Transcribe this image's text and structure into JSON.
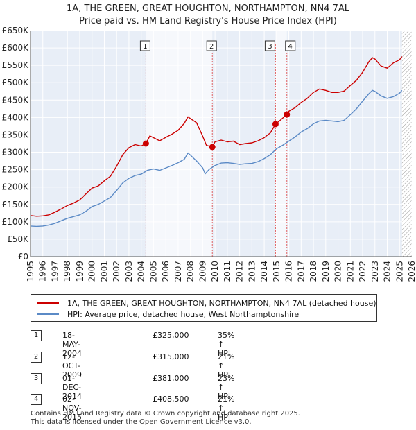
{
  "header": {
    "title": "1A, THE GREEN, GREAT HOUGHTON, NORTHAMPTON, NN4 7AL",
    "subtitle": "Price paid vs. HM Land Registry's House Price Index (HPI)"
  },
  "legend": {
    "items": [
      {
        "label": "1A, THE GREEN, GREAT HOUGHTON, NORTHAMPTON, NN4 7AL (detached house)",
        "color": "#cc0000"
      },
      {
        "label": "HPI: Average price, detached house, West Northamptonshire",
        "color": "#5b8ac6"
      }
    ]
  },
  "transactions": [
    {
      "num": "1",
      "date": "18-MAY-2004",
      "price": "£325,000",
      "hpi": "35% ↑ HPI"
    },
    {
      "num": "2",
      "date": "12-OCT-2009",
      "price": "£315,000",
      "hpi": "21% ↑ HPI"
    },
    {
      "num": "3",
      "date": "01-DEC-2014",
      "price": "£381,000",
      "hpi": "23% ↑ HPI"
    },
    {
      "num": "4",
      "date": "02-NOV-2015",
      "price": "£408,500",
      "hpi": "21% ↑ HPI"
    }
  ],
  "footer": {
    "line1": "Contains HM Land Registry data © Crown copyright and database right 2025.",
    "line2": "This data is licensed under the Open Government Licence v3.0."
  },
  "chart_data": {
    "type": "line",
    "xlim": [
      1995,
      2026
    ],
    "ylim": [
      0,
      650000
    ],
    "x_ticks": [
      "1995",
      "1996",
      "1997",
      "1998",
      "1999",
      "2000",
      "2001",
      "2002",
      "2003",
      "2004",
      "2005",
      "2006",
      "2007",
      "2008",
      "2009",
      "2010",
      "2011",
      "2012",
      "2013",
      "2014",
      "2015",
      "2016",
      "2017",
      "2018",
      "2019",
      "2020",
      "2021",
      "2022",
      "2023",
      "2024",
      "2025",
      "2026"
    ],
    "y_ticks": [
      {
        "value": 0,
        "label": "£0"
      },
      {
        "value": 50000,
        "label": "£50K"
      },
      {
        "value": 100000,
        "label": "£100K"
      },
      {
        "value": 150000,
        "label": "£150K"
      },
      {
        "value": 200000,
        "label": "£200K"
      },
      {
        "value": 250000,
        "label": "£250K"
      },
      {
        "value": 300000,
        "label": "£300K"
      },
      {
        "value": 350000,
        "label": "£350K"
      },
      {
        "value": 400000,
        "label": "£400K"
      },
      {
        "value": 450000,
        "label": "£450K"
      },
      {
        "value": 500000,
        "label": "£500K"
      },
      {
        "value": 550000,
        "label": "£550K"
      },
      {
        "value": 600000,
        "label": "£600K"
      },
      {
        "value": 650000,
        "label": "£650K"
      }
    ],
    "grid": true,
    "background": "#e8eef7",
    "hatch_from": 2025.2,
    "markers": [
      {
        "label": "1",
        "x": 2004.38,
        "y": 325000
      },
      {
        "label": "2",
        "x": 2009.78,
        "y": 315000
      },
      {
        "label": "3",
        "x": 2014.92,
        "y": 381000
      },
      {
        "label": "4",
        "x": 2015.84,
        "y": 408500
      }
    ],
    "marker_bands": [
      [
        2004.38,
        2009.78
      ],
      [
        2014.92,
        2015.84
      ]
    ],
    "series": [
      {
        "name": "1A, THE GREEN, GREAT HOUGHTON, NORTHAMPTON, NN4 7AL (detached house)",
        "color": "#cc0000",
        "x": [
          1995.0,
          1995.5,
          1996.0,
          1996.5,
          1997.0,
          1997.5,
          1998.0,
          1998.5,
          1999.0,
          1999.5,
          2000.0,
          2000.5,
          2001.0,
          2001.5,
          2002.0,
          2002.5,
          2003.0,
          2003.5,
          2004.0,
          2004.38,
          2004.7,
          2005.0,
          2005.5,
          2006.0,
          2006.5,
          2007.0,
          2007.5,
          2007.8,
          2008.0,
          2008.5,
          2009.0,
          2009.3,
          2009.78,
          2010.0,
          2010.5,
          2011.0,
          2011.5,
          2012.0,
          2012.5,
          2013.0,
          2013.5,
          2014.0,
          2014.5,
          2014.92,
          2015.3,
          2015.84,
          2016.0,
          2016.5,
          2017.0,
          2017.5,
          2018.0,
          2018.5,
          2019.0,
          2019.5,
          2020.0,
          2020.5,
          2021.0,
          2021.5,
          2022.0,
          2022.5,
          2022.8,
          2023.0,
          2023.5,
          2024.0,
          2024.5,
          2025.0,
          2025.2
        ],
        "y": [
          118000,
          116000,
          117000,
          120000,
          128000,
          137000,
          147000,
          154000,
          163000,
          180000,
          197000,
          203000,
          218000,
          231000,
          260000,
          293000,
          313000,
          322000,
          318000,
          325000,
          347000,
          342000,
          333000,
          343000,
          352000,
          363000,
          383000,
          402000,
          397000,
          385000,
          346000,
          320000,
          315000,
          330000,
          335000,
          330000,
          332000,
          322000,
          325000,
          327000,
          333000,
          342000,
          356000,
          381000,
          392000,
          408500,
          418000,
          428000,
          443000,
          455000,
          472000,
          482000,
          478000,
          472000,
          472000,
          476000,
          492000,
          507000,
          530000,
          560000,
          572000,
          568000,
          548000,
          542000,
          557000,
          566000,
          575000
        ]
      },
      {
        "name": "HPI: Average price, detached house, West Northamptonshire",
        "color": "#5b8ac6",
        "x": [
          1995.0,
          1995.5,
          1996.0,
          1996.5,
          1997.0,
          1997.5,
          1998.0,
          1998.5,
          1999.0,
          1999.5,
          2000.0,
          2000.5,
          2001.0,
          2001.5,
          2002.0,
          2002.5,
          2003.0,
          2003.5,
          2004.0,
          2004.5,
          2005.0,
          2005.5,
          2006.0,
          2006.5,
          2007.0,
          2007.5,
          2007.8,
          2008.0,
          2008.5,
          2009.0,
          2009.2,
          2009.5,
          2010.0,
          2010.5,
          2011.0,
          2011.5,
          2012.0,
          2012.5,
          2013.0,
          2013.5,
          2014.0,
          2014.5,
          2015.0,
          2015.5,
          2016.0,
          2016.5,
          2017.0,
          2017.5,
          2018.0,
          2018.5,
          2019.0,
          2019.5,
          2020.0,
          2020.5,
          2021.0,
          2021.5,
          2022.0,
          2022.5,
          2022.8,
          2023.0,
          2023.5,
          2024.0,
          2024.5,
          2025.0,
          2025.2
        ],
        "y": [
          88000,
          87000,
          88000,
          91000,
          96000,
          103000,
          110000,
          115000,
          120000,
          130000,
          144000,
          150000,
          160000,
          170000,
          190000,
          212000,
          225000,
          233000,
          237000,
          248000,
          252000,
          248000,
          255000,
          262000,
          270000,
          280000,
          298000,
          292000,
          275000,
          255000,
          238000,
          250000,
          262000,
          269000,
          270000,
          268000,
          265000,
          267000,
          268000,
          273000,
          282000,
          293000,
          310000,
          320000,
          332000,
          344000,
          358000,
          368000,
          382000,
          390000,
          392000,
          390000,
          388000,
          392000,
          408000,
          425000,
          447000,
          468000,
          478000,
          475000,
          462000,
          455000,
          460000,
          470000,
          478000
        ]
      }
    ]
  }
}
